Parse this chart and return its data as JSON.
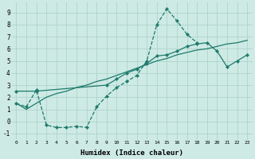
{
  "xlabel": "Humidex (Indice chaleur)",
  "bg_color": "#cdeae4",
  "grid_color": "#aed4cc",
  "line_color": "#1e7a6d",
  "xlim": [
    -0.5,
    23.5
  ],
  "ylim": [
    -1.5,
    9.8
  ],
  "xticks": [
    0,
    1,
    2,
    3,
    4,
    5,
    6,
    7,
    8,
    9,
    10,
    11,
    12,
    13,
    14,
    15,
    16,
    17,
    18,
    19,
    20,
    21,
    22,
    23
  ],
  "yticks": [
    -1,
    0,
    1,
    2,
    3,
    4,
    5,
    6,
    7,
    8,
    9
  ],
  "series1_x": [
    0,
    1,
    2,
    3,
    4,
    5,
    6,
    7,
    8,
    9,
    10,
    11,
    12,
    13,
    14,
    15,
    16,
    17,
    18,
    19,
    20,
    21,
    22,
    23
  ],
  "series1_y": [
    1.5,
    1.2,
    2.6,
    -0.3,
    -0.5,
    -0.5,
    -0.4,
    -0.5,
    1.2,
    2.1,
    2.8,
    3.3,
    3.8,
    5.0,
    8.0,
    9.3,
    8.3,
    7.2,
    6.5,
    null,
    null,
    null,
    null,
    null
  ],
  "series2_x": [
    0,
    2,
    9,
    10,
    11,
    12,
    13,
    14,
    15,
    16,
    17,
    18,
    19,
    20,
    21,
    22,
    23
  ],
  "series2_y": [
    2.5,
    2.5,
    3.0,
    3.5,
    4.0,
    4.3,
    4.8,
    5.4,
    5.5,
    5.8,
    6.2,
    6.4,
    6.5,
    5.8,
    4.5,
    5.0,
    5.5
  ],
  "series3_x": [
    0,
    1,
    2,
    3,
    4,
    5,
    6,
    7,
    8,
    9,
    10,
    11,
    12,
    13,
    14,
    15,
    16,
    17,
    18,
    19,
    20,
    21,
    22,
    23
  ],
  "series3_y": [
    1.5,
    1.0,
    1.5,
    2.0,
    2.3,
    2.5,
    2.8,
    3.0,
    3.3,
    3.5,
    3.8,
    4.1,
    4.4,
    4.7,
    5.0,
    5.2,
    5.5,
    5.7,
    5.9,
    6.0,
    6.2,
    6.4,
    6.5,
    6.7
  ]
}
